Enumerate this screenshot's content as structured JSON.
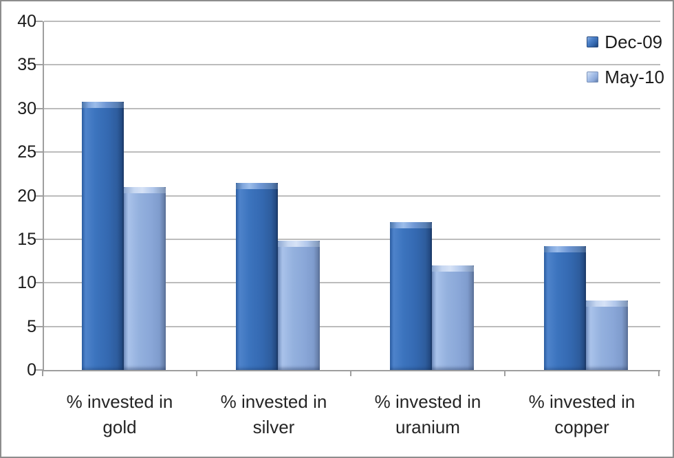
{
  "chart_data": {
    "type": "bar",
    "categories": [
      "% invested in gold",
      "% invested in silver",
      "% invested in uranium",
      "% invested in copper"
    ],
    "series": [
      {
        "name": "Dec-09",
        "color": "#3a70bc",
        "values": [
          30.8,
          21.5,
          17,
          14.2
        ]
      },
      {
        "name": "May-10",
        "color": "#8ba8d9",
        "values": [
          21,
          14.8,
          12,
          8
        ]
      }
    ],
    "title": "",
    "xlabel": "",
    "ylabel": "",
    "ylim": [
      0,
      40
    ],
    "ytick_step": 5,
    "ytick_labels": [
      "0",
      "5",
      "10",
      "15",
      "20",
      "25",
      "30",
      "35",
      "40"
    ],
    "grid": true,
    "legend_position": "top-right"
  },
  "colors": {
    "series_dec09": "#3a70bc",
    "series_may10": "#8ba8d9",
    "gridline": "#bcbcbc",
    "axis": "#9e9e9e",
    "text": "#1c1c1c",
    "background": "#ffffff",
    "border": "#8d8d8d"
  }
}
